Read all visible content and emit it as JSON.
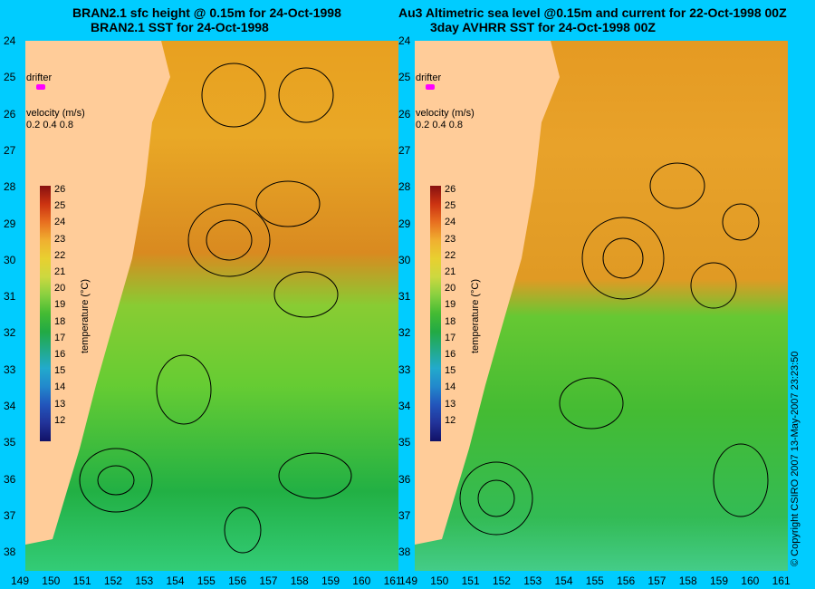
{
  "titles": {
    "left_line1": "BRAN2.1 sfc height @ 0.15m for 24-Oct-1998",
    "left_line2": "BRAN2.1 SST for 24-Oct-1998",
    "right_line1": "Au3 Altimetric sea level  @0.15m and current for 22-Oct-1998 00Z",
    "right_line2": "3day AVHRR SST for 24-Oct-1998 00Z"
  },
  "legend": {
    "drifter": "drifter",
    "velocity_title": "velocity (m/s)",
    "velocity_scale": "0.2 0.4 0.8",
    "temperature_label": "temperature (°C)",
    "temp_ticks": [
      "26",
      "25",
      "24",
      "23",
      "22",
      "21",
      "20",
      "19",
      "18",
      "17",
      "16",
      "15",
      "14",
      "13",
      "12"
    ]
  },
  "axes": {
    "lat_ticks": [
      "24",
      "25",
      "26",
      "27",
      "28",
      "29",
      "30",
      "31",
      "32",
      "33",
      "34",
      "35",
      "36",
      "37",
      "38"
    ],
    "lon_ticks": [
      "149",
      "150",
      "151",
      "152",
      "153",
      "154",
      "155",
      "156",
      "157",
      "158",
      "159",
      "160",
      "161"
    ]
  },
  "copyright": "© Copyright CSIRO 2007   13-May-2007 23:23:50",
  "colors": {
    "background": "#00ccff",
    "land": "#ffcc99",
    "warm": "#e0a020",
    "mid": "#7bd13a",
    "cool": "#33bb33",
    "drifter": "#ff00ff"
  }
}
